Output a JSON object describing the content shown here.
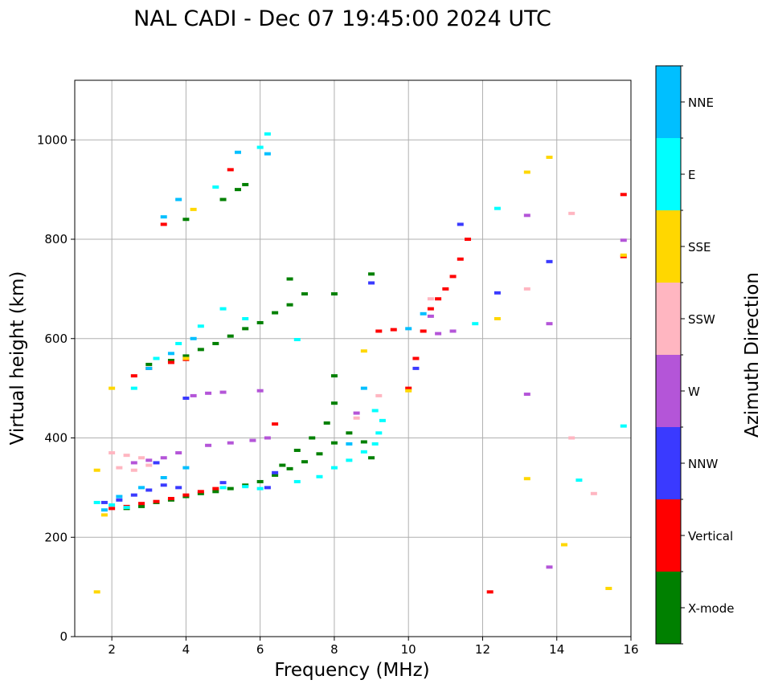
{
  "chart_data": {
    "type": "scatter",
    "title": "NAL CADI - Dec 07 19:45:00 2024 UTC",
    "xlabel": "Frequency (MHz)",
    "ylabel": "Virtual height (km)",
    "xlim": [
      1,
      16
    ],
    "ylim": [
      0,
      1120
    ],
    "xticks": [
      2,
      4,
      6,
      8,
      10,
      12,
      14,
      16
    ],
    "yticks": [
      0,
      200,
      400,
      600,
      800,
      1000
    ],
    "grid": true,
    "colorbar": {
      "label": "Azimuth Direction",
      "categories": [
        {
          "name": "X-mode",
          "color": "#008000"
        },
        {
          "name": "Vertical",
          "color": "#ff0000"
        },
        {
          "name": "NNW",
          "color": "#3a3aff"
        },
        {
          "name": "W",
          "color": "#b455d8"
        },
        {
          "name": "SSW",
          "color": "#ffb6c1"
        },
        {
          "name": "SSE",
          "color": "#ffd700"
        },
        {
          "name": "E",
          "color": "#00ffff"
        },
        {
          "name": "NNE",
          "color": "#00bfff"
        }
      ]
    },
    "series": [
      {
        "name": "X-mode",
        "points": [
          [
            2.4,
            258
          ],
          [
            2.8,
            262
          ],
          [
            3.2,
            270
          ],
          [
            3.6,
            275
          ],
          [
            4.0,
            282
          ],
          [
            4.4,
            288
          ],
          [
            4.8,
            292
          ],
          [
            5.2,
            298
          ],
          [
            5.6,
            305
          ],
          [
            6.0,
            312
          ],
          [
            6.4,
            325
          ],
          [
            6.8,
            338
          ],
          [
            7.2,
            352
          ],
          [
            7.6,
            368
          ],
          [
            8.0,
            390
          ],
          [
            8.4,
            410
          ],
          [
            8.8,
            392
          ],
          [
            9.0,
            360
          ],
          [
            3.0,
            548
          ],
          [
            3.6,
            556
          ],
          [
            4.0,
            565
          ],
          [
            4.4,
            578
          ],
          [
            4.8,
            590
          ],
          [
            5.2,
            605
          ],
          [
            5.6,
            620
          ],
          [
            6.0,
            632
          ],
          [
            6.4,
            652
          ],
          [
            6.8,
            668
          ],
          [
            7.2,
            690
          ],
          [
            8.0,
            690
          ],
          [
            5.0,
            880
          ],
          [
            5.4,
            900
          ],
          [
            5.6,
            910
          ],
          [
            4.0,
            840
          ],
          [
            6.6,
            345
          ],
          [
            7.0,
            375
          ],
          [
            7.4,
            400
          ],
          [
            7.8,
            430
          ],
          [
            8.0,
            470
          ],
          [
            9.0,
            730
          ],
          [
            6.8,
            720
          ],
          [
            8.0,
            525
          ]
        ]
      },
      {
        "name": "Vertical",
        "points": [
          [
            2.0,
            258
          ],
          [
            2.4,
            262
          ],
          [
            2.8,
            268
          ],
          [
            3.2,
            272
          ],
          [
            3.6,
            278
          ],
          [
            4.0,
            285
          ],
          [
            4.4,
            292
          ],
          [
            4.8,
            298
          ],
          [
            2.6,
            525
          ],
          [
            3.0,
            540
          ],
          [
            3.6,
            552
          ],
          [
            4.0,
            558
          ],
          [
            5.2,
            940
          ],
          [
            3.4,
            830
          ],
          [
            6.4,
            428
          ],
          [
            9.6,
            618
          ],
          [
            10.0,
            500
          ],
          [
            10.2,
            560
          ],
          [
            10.4,
            615
          ],
          [
            10.6,
            660
          ],
          [
            10.8,
            680
          ],
          [
            11.0,
            700
          ],
          [
            11.2,
            725
          ],
          [
            11.4,
            760
          ],
          [
            11.6,
            800
          ],
          [
            12.2,
            90
          ],
          [
            15.8,
            890
          ],
          [
            15.8,
            765
          ],
          [
            9.2,
            615
          ]
        ]
      },
      {
        "name": "NNW",
        "points": [
          [
            1.8,
            270
          ],
          [
            2.2,
            275
          ],
          [
            2.6,
            285
          ],
          [
            3.0,
            295
          ],
          [
            3.4,
            305
          ],
          [
            3.8,
            300
          ],
          [
            5.0,
            310
          ],
          [
            6.2,
            300
          ],
          [
            6.4,
            330
          ],
          [
            9.0,
            712
          ],
          [
            11.4,
            830
          ],
          [
            12.4,
            692
          ],
          [
            13.8,
            755
          ],
          [
            4.0,
            480
          ],
          [
            3.2,
            350
          ],
          [
            10.2,
            540
          ]
        ]
      },
      {
        "name": "W",
        "points": [
          [
            2.6,
            350
          ],
          [
            3.0,
            355
          ],
          [
            3.4,
            360
          ],
          [
            3.8,
            370
          ],
          [
            4.6,
            385
          ],
          [
            5.2,
            390
          ],
          [
            5.8,
            395
          ],
          [
            6.2,
            400
          ],
          [
            4.2,
            485
          ],
          [
            4.6,
            490
          ],
          [
            5.0,
            492
          ],
          [
            6.0,
            495
          ],
          [
            8.6,
            450
          ],
          [
            10.6,
            645
          ],
          [
            10.8,
            610
          ],
          [
            11.2,
            615
          ],
          [
            13.2,
            848
          ],
          [
            13.2,
            488
          ],
          [
            13.8,
            630
          ],
          [
            13.8,
            140
          ],
          [
            15.8,
            798
          ]
        ]
      },
      {
        "name": "SSW",
        "points": [
          [
            2.0,
            370
          ],
          [
            2.4,
            365
          ],
          [
            2.8,
            360
          ],
          [
            2.2,
            340
          ],
          [
            2.6,
            335
          ],
          [
            3.0,
            345
          ],
          [
            8.6,
            440
          ],
          [
            9.2,
            485
          ],
          [
            10.6,
            680
          ],
          [
            13.2,
            700
          ],
          [
            14.4,
            852
          ],
          [
            15.0,
            288
          ],
          [
            14.4,
            400
          ]
        ]
      },
      {
        "name": "SSE",
        "points": [
          [
            1.6,
            335
          ],
          [
            1.6,
            90
          ],
          [
            1.8,
            245
          ],
          [
            2.0,
            500
          ],
          [
            4.0,
            560
          ],
          [
            10.0,
            495
          ],
          [
            12.4,
            640
          ],
          [
            13.2,
            318
          ],
          [
            13.2,
            935
          ],
          [
            13.8,
            965
          ],
          [
            14.2,
            185
          ],
          [
            15.4,
            97
          ],
          [
            15.8,
            768
          ],
          [
            4.2,
            860
          ],
          [
            8.8,
            575
          ]
        ]
      },
      {
        "name": "E",
        "points": [
          [
            1.6,
            270
          ],
          [
            2.0,
            265
          ],
          [
            2.4,
            260
          ],
          [
            5.0,
            300
          ],
          [
            5.6,
            302
          ],
          [
            6.0,
            298
          ],
          [
            7.0,
            312
          ],
          [
            7.6,
            322
          ],
          [
            8.0,
            340
          ],
          [
            8.4,
            355
          ],
          [
            8.8,
            372
          ],
          [
            9.1,
            388
          ],
          [
            9.2,
            410
          ],
          [
            9.3,
            435
          ],
          [
            9.1,
            455
          ],
          [
            2.6,
            500
          ],
          [
            3.2,
            560
          ],
          [
            3.8,
            590
          ],
          [
            4.4,
            625
          ],
          [
            5.0,
            660
          ],
          [
            5.6,
            640
          ],
          [
            6.2,
            1012
          ],
          [
            6.0,
            985
          ],
          [
            4.8,
            905
          ],
          [
            12.4,
            862
          ],
          [
            15.8,
            424
          ],
          [
            14.6,
            315
          ],
          [
            7.0,
            598
          ],
          [
            11.8,
            630
          ]
        ]
      },
      {
        "name": "NNE",
        "points": [
          [
            1.8,
            255
          ],
          [
            2.2,
            282
          ],
          [
            2.8,
            300
          ],
          [
            3.4,
            320
          ],
          [
            4.0,
            340
          ],
          [
            3.0,
            540
          ],
          [
            3.6,
            570
          ],
          [
            4.2,
            600
          ],
          [
            3.4,
            845
          ],
          [
            3.8,
            880
          ],
          [
            5.4,
            975
          ],
          [
            6.2,
            972
          ],
          [
            8.4,
            388
          ],
          [
            8.8,
            500
          ],
          [
            10.0,
            620
          ],
          [
            10.4,
            650
          ]
        ]
      }
    ]
  }
}
